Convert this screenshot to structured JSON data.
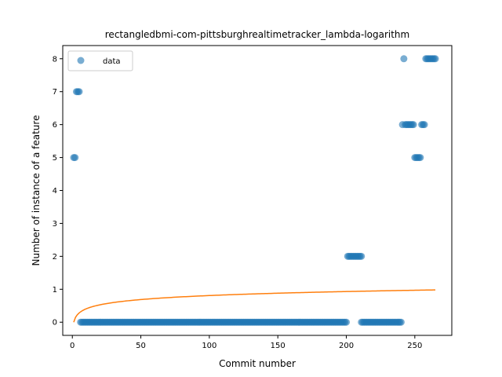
{
  "chart_data": {
    "type": "scatter",
    "title": "rectangledbmi-com-pittsburghrealtimetracker_lambda-logarithm",
    "xlabel": "Commit number",
    "ylabel": "Number of instance of a feature",
    "xlim": [
      -7,
      277
    ],
    "ylim": [
      -0.4,
      8.4
    ],
    "xticks": [
      0,
      50,
      100,
      150,
      200,
      250
    ],
    "yticks": [
      0,
      1,
      2,
      3,
      4,
      5,
      6,
      7,
      8
    ],
    "grid": false,
    "legend": {
      "position": "top-left",
      "entries": [
        "data"
      ]
    },
    "colors": {
      "scatter": "#1f77b4",
      "line": "#ff7f0e"
    },
    "scatter_series": {
      "name": "data",
      "points": [
        [
          1,
          5
        ],
        [
          2,
          5
        ],
        [
          3,
          7
        ],
        [
          4,
          7
        ],
        [
          5,
          7
        ],
        [
          6,
          0
        ],
        [
          7,
          0
        ],
        [
          8,
          0
        ],
        [
          9,
          0
        ],
        [
          10,
          0
        ],
        [
          11,
          0
        ],
        [
          12,
          0
        ],
        [
          13,
          0
        ],
        [
          14,
          0
        ],
        [
          15,
          0
        ],
        [
          16,
          0
        ],
        [
          17,
          0
        ],
        [
          18,
          0
        ],
        [
          19,
          0
        ],
        [
          20,
          0
        ],
        [
          21,
          0
        ],
        [
          22,
          0
        ],
        [
          23,
          0
        ],
        [
          24,
          0
        ],
        [
          25,
          0
        ],
        [
          26,
          0
        ],
        [
          27,
          0
        ],
        [
          28,
          0
        ],
        [
          29,
          0
        ],
        [
          30,
          0
        ],
        [
          31,
          0
        ],
        [
          32,
          0
        ],
        [
          33,
          0
        ],
        [
          34,
          0
        ],
        [
          35,
          0
        ],
        [
          36,
          0
        ],
        [
          37,
          0
        ],
        [
          38,
          0
        ],
        [
          39,
          0
        ],
        [
          40,
          0
        ],
        [
          41,
          0
        ],
        [
          42,
          0
        ],
        [
          43,
          0
        ],
        [
          44,
          0
        ],
        [
          45,
          0
        ],
        [
          46,
          0
        ],
        [
          47,
          0
        ],
        [
          48,
          0
        ],
        [
          49,
          0
        ],
        [
          50,
          0
        ],
        [
          51,
          0
        ],
        [
          52,
          0
        ],
        [
          53,
          0
        ],
        [
          54,
          0
        ],
        [
          55,
          0
        ],
        [
          56,
          0
        ],
        [
          57,
          0
        ],
        [
          58,
          0
        ],
        [
          59,
          0
        ],
        [
          60,
          0
        ],
        [
          61,
          0
        ],
        [
          62,
          0
        ],
        [
          63,
          0
        ],
        [
          64,
          0
        ],
        [
          65,
          0
        ],
        [
          66,
          0
        ],
        [
          67,
          0
        ],
        [
          68,
          0
        ],
        [
          69,
          0
        ],
        [
          70,
          0
        ],
        [
          71,
          0
        ],
        [
          72,
          0
        ],
        [
          73,
          0
        ],
        [
          74,
          0
        ],
        [
          75,
          0
        ],
        [
          76,
          0
        ],
        [
          77,
          0
        ],
        [
          78,
          0
        ],
        [
          79,
          0
        ],
        [
          80,
          0
        ],
        [
          81,
          0
        ],
        [
          82,
          0
        ],
        [
          83,
          0
        ],
        [
          84,
          0
        ],
        [
          85,
          0
        ],
        [
          86,
          0
        ],
        [
          87,
          0
        ],
        [
          88,
          0
        ],
        [
          89,
          0
        ],
        [
          90,
          0
        ],
        [
          91,
          0
        ],
        [
          92,
          0
        ],
        [
          93,
          0
        ],
        [
          94,
          0
        ],
        [
          95,
          0
        ],
        [
          96,
          0
        ],
        [
          97,
          0
        ],
        [
          98,
          0
        ],
        [
          99,
          0
        ],
        [
          100,
          0
        ],
        [
          101,
          0
        ],
        [
          102,
          0
        ],
        [
          103,
          0
        ],
        [
          104,
          0
        ],
        [
          105,
          0
        ],
        [
          106,
          0
        ],
        [
          107,
          0
        ],
        [
          108,
          0
        ],
        [
          109,
          0
        ],
        [
          110,
          0
        ],
        [
          111,
          0
        ],
        [
          112,
          0
        ],
        [
          113,
          0
        ],
        [
          114,
          0
        ],
        [
          115,
          0
        ],
        [
          116,
          0
        ],
        [
          117,
          0
        ],
        [
          118,
          0
        ],
        [
          119,
          0
        ],
        [
          120,
          0
        ],
        [
          121,
          0
        ],
        [
          122,
          0
        ],
        [
          123,
          0
        ],
        [
          124,
          0
        ],
        [
          125,
          0
        ],
        [
          126,
          0
        ],
        [
          127,
          0
        ],
        [
          128,
          0
        ],
        [
          129,
          0
        ],
        [
          130,
          0
        ],
        [
          131,
          0
        ],
        [
          132,
          0
        ],
        [
          133,
          0
        ],
        [
          134,
          0
        ],
        [
          135,
          0
        ],
        [
          136,
          0
        ],
        [
          137,
          0
        ],
        [
          138,
          0
        ],
        [
          139,
          0
        ],
        [
          140,
          0
        ],
        [
          141,
          0
        ],
        [
          142,
          0
        ],
        [
          143,
          0
        ],
        [
          144,
          0
        ],
        [
          145,
          0
        ],
        [
          146,
          0
        ],
        [
          147,
          0
        ],
        [
          148,
          0
        ],
        [
          149,
          0
        ],
        [
          150,
          0
        ],
        [
          151,
          0
        ],
        [
          152,
          0
        ],
        [
          153,
          0
        ],
        [
          154,
          0
        ],
        [
          155,
          0
        ],
        [
          156,
          0
        ],
        [
          157,
          0
        ],
        [
          158,
          0
        ],
        [
          159,
          0
        ],
        [
          160,
          0
        ],
        [
          161,
          0
        ],
        [
          162,
          0
        ],
        [
          163,
          0
        ],
        [
          164,
          0
        ],
        [
          165,
          0
        ],
        [
          166,
          0
        ],
        [
          167,
          0
        ],
        [
          168,
          0
        ],
        [
          169,
          0
        ],
        [
          170,
          0
        ],
        [
          171,
          0
        ],
        [
          172,
          0
        ],
        [
          173,
          0
        ],
        [
          174,
          0
        ],
        [
          175,
          0
        ],
        [
          176,
          0
        ],
        [
          177,
          0
        ],
        [
          178,
          0
        ],
        [
          179,
          0
        ],
        [
          180,
          0
        ],
        [
          181,
          0
        ],
        [
          182,
          0
        ],
        [
          183,
          0
        ],
        [
          184,
          0
        ],
        [
          185,
          0
        ],
        [
          186,
          0
        ],
        [
          187,
          0
        ],
        [
          188,
          0
        ],
        [
          189,
          0
        ],
        [
          190,
          0
        ],
        [
          191,
          0
        ],
        [
          192,
          0
        ],
        [
          193,
          0
        ],
        [
          194,
          0
        ],
        [
          195,
          0
        ],
        [
          196,
          0
        ],
        [
          197,
          0
        ],
        [
          198,
          0
        ],
        [
          199,
          0
        ],
        [
          200,
          0
        ],
        [
          201,
          2
        ],
        [
          202,
          2
        ],
        [
          203,
          2
        ],
        [
          204,
          2
        ],
        [
          205,
          2
        ],
        [
          206,
          2
        ],
        [
          207,
          2
        ],
        [
          208,
          2
        ],
        [
          209,
          2
        ],
        [
          210,
          2
        ],
        [
          211,
          2
        ],
        [
          211,
          0
        ],
        [
          212,
          0
        ],
        [
          213,
          0
        ],
        [
          214,
          0
        ],
        [
          215,
          0
        ],
        [
          216,
          0
        ],
        [
          217,
          0
        ],
        [
          218,
          0
        ],
        [
          219,
          0
        ],
        [
          220,
          0
        ],
        [
          221,
          0
        ],
        [
          222,
          0
        ],
        [
          223,
          0
        ],
        [
          224,
          0
        ],
        [
          225,
          0
        ],
        [
          226,
          0
        ],
        [
          227,
          0
        ],
        [
          228,
          0
        ],
        [
          229,
          0
        ],
        [
          230,
          0
        ],
        [
          231,
          0
        ],
        [
          232,
          0
        ],
        [
          233,
          0
        ],
        [
          234,
          0
        ],
        [
          235,
          0
        ],
        [
          236,
          0
        ],
        [
          237,
          0
        ],
        [
          238,
          0
        ],
        [
          239,
          0
        ],
        [
          240,
          0
        ],
        [
          241,
          6
        ],
        [
          242,
          8
        ],
        [
          243,
          6
        ],
        [
          244,
          6
        ],
        [
          245,
          6
        ],
        [
          246,
          6
        ],
        [
          247,
          6
        ],
        [
          248,
          6
        ],
        [
          249,
          6
        ],
        [
          250,
          5
        ],
        [
          251,
          5
        ],
        [
          252,
          5
        ],
        [
          253,
          5
        ],
        [
          254,
          5
        ],
        [
          255,
          6
        ],
        [
          256,
          6
        ],
        [
          257,
          6
        ],
        [
          258,
          8
        ],
        [
          259,
          8
        ],
        [
          260,
          8
        ],
        [
          261,
          8
        ],
        [
          262,
          8
        ],
        [
          263,
          8
        ],
        [
          264,
          8
        ],
        [
          265,
          8
        ]
      ]
    },
    "line_series": {
      "x_range": [
        1,
        265
      ],
      "model": "log",
      "a": 0,
      "b": 0.1757
    }
  }
}
